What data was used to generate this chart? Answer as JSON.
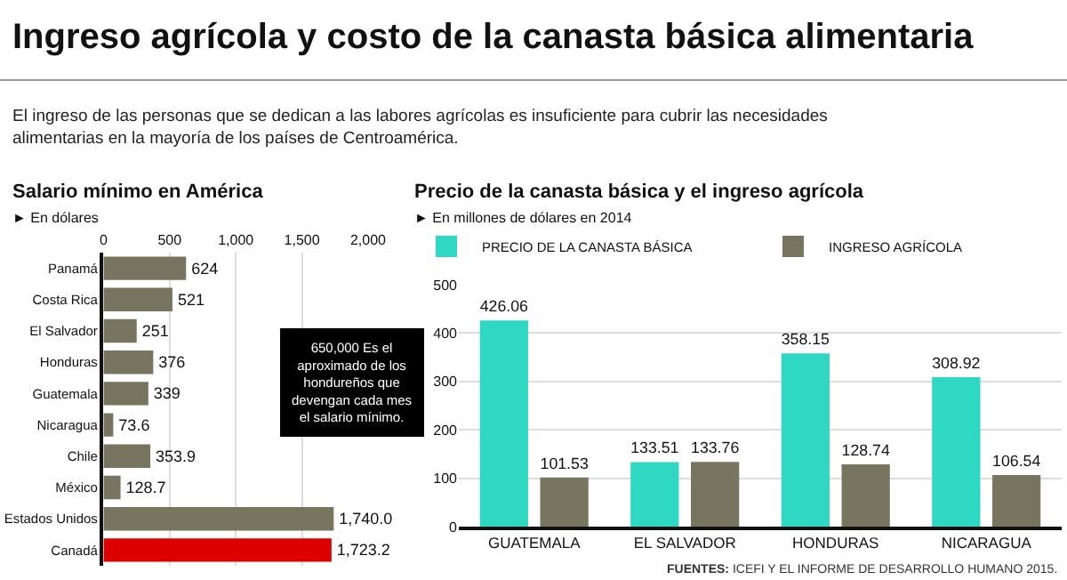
{
  "chart_data": [
    {
      "type": "other",
      "title": "Ingreso agrícola y costo de la canasta básica alimentaria",
      "subtitle": "El ingreso de las personas que se dedican a las labores agrícolas es insuficiente para cubrir las necesidades alimentarias en la mayoría de los países de Centroamérica."
    },
    {
      "type": "bar",
      "orientation": "horizontal",
      "title": "Salario mínimo en América",
      "subtitle": "► En dólares",
      "categories": [
        "Panamá",
        "Costa Rica",
        "El Salvador",
        "Honduras",
        "Guatemala",
        "Nicaragua",
        "Chile",
        "México",
        "Estados Unidos",
        "Canadá"
      ],
      "values": [
        624,
        521,
        251,
        376,
        339,
        73.6,
        353.9,
        128.7,
        1740.0,
        1723.2
      ],
      "value_labels": [
        "624",
        "521",
        "251",
        "376",
        "339",
        "73.6",
        "353.9",
        "128.7",
        "1,740.0",
        "1,723.2"
      ],
      "colors": [
        "#77745f",
        "#77745f",
        "#77745f",
        "#77745f",
        "#77745f",
        "#77745f",
        "#77745f",
        "#77745f",
        "#77745f",
        "#dd0000"
      ],
      "xlim": [
        0,
        2000
      ],
      "xticks": [
        0,
        500,
        {
          "value": 1000,
          "label": "1,000"
        },
        {
          "value": 1500,
          "label": "1,500"
        },
        {
          "value": 2000,
          "label": "2,000"
        }
      ],
      "grid": "x",
      "annotations": [
        "650,000 Es el aproximado de los hondureños que devengan cada mes el salario mínimo."
      ]
    },
    {
      "type": "bar",
      "title": "Precio de la canasta básica y el ingreso agrícola",
      "subtitle": "► En millones de dólares en 2014",
      "categories": [
        "GUATEMALA",
        "EL SALVADOR",
        "HONDURAS",
        "NICARAGUA"
      ],
      "series": [
        {
          "name": "PRECIO DE LA CANASTA BÁSICA",
          "color": "#2ed8c3",
          "values": [
            426.06,
            133.51,
            358.15,
            308.92
          ]
        },
        {
          "name": "INGRESO AGRÍCOLA",
          "color": "#77745f",
          "values": [
            101.53,
            133.76,
            128.74,
            106.54
          ]
        }
      ],
      "ylim": [
        0,
        500
      ],
      "yticks": [
        0,
        100,
        200,
        300,
        400,
        500
      ],
      "grid": "y",
      "legend": "top left",
      "data_labels": true,
      "annotations": [
        "FUENTES: ICEFI Y EL INFORME DE DESARROLLO HUMANO 2015."
      ]
    }
  ]
}
